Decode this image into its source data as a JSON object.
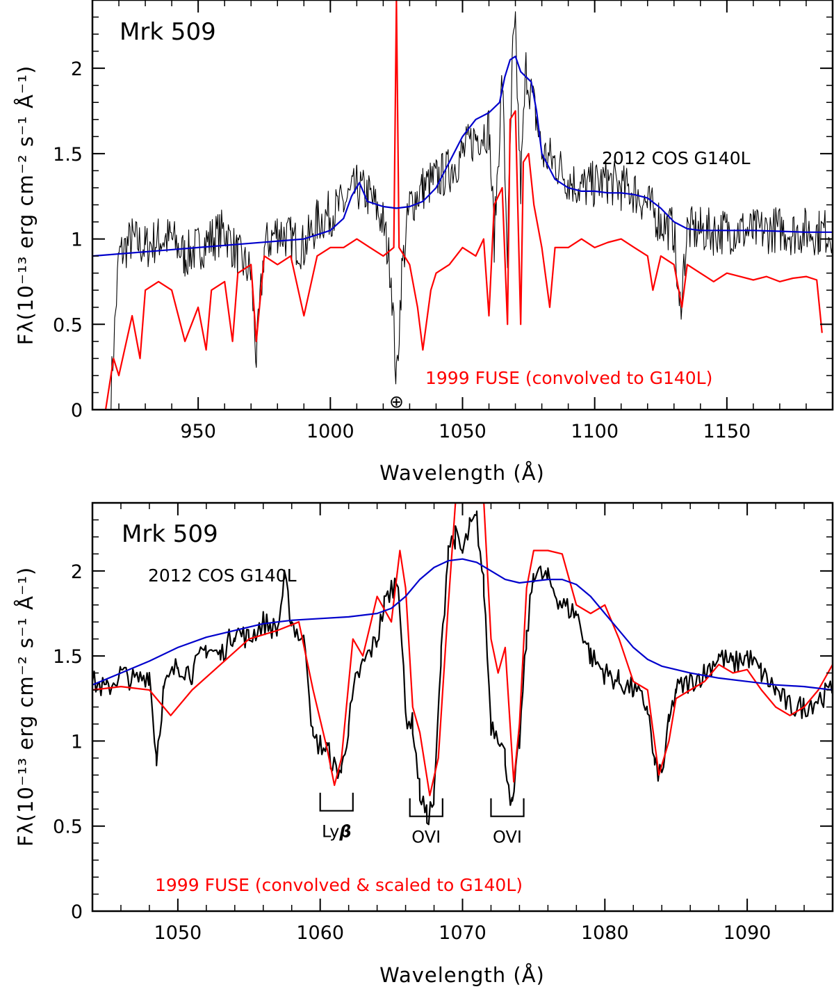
{
  "chart_data": [
    {
      "type": "line",
      "title": "Mrk 509",
      "xlabel": "Wavelength (Å)",
      "ylabel": "Fλ(10⁻¹³ erg cm⁻² s⁻¹ Å⁻¹)",
      "xlim": [
        910,
        1190
      ],
      "ylim": [
        0,
        2.4
      ],
      "xticks": [
        "950",
        "1000",
        "1050",
        "1100",
        "1150"
      ],
      "yticks": [
        "0",
        "0.5",
        "1",
        "1.5",
        "2"
      ],
      "grid": false,
      "annotations": [
        {
          "text": "2012 COS G140L",
          "color": "#000000"
        },
        {
          "text": "1999 FUSE (convolved to G140L)",
          "color": "#ff0000"
        },
        {
          "text": "⊕",
          "color": "#000000",
          "x": 1025
        }
      ],
      "series": [
        {
          "name": "2012 COS G140L",
          "color": "#000000",
          "x": [
            917,
            920,
            925,
            930,
            935,
            940,
            945,
            950,
            955,
            960,
            965,
            970,
            972,
            975,
            980,
            985,
            990,
            995,
            1000,
            1005,
            1010,
            1015,
            1020,
            1023,
            1025,
            1027,
            1030,
            1035,
            1040,
            1045,
            1050,
            1055,
            1060,
            1062,
            1065,
            1067,
            1069,
            1070,
            1072,
            1074,
            1076,
            1078,
            1080,
            1085,
            1090,
            1095,
            1100,
            1105,
            1110,
            1115,
            1120,
            1125,
            1130,
            1132,
            1135,
            1140,
            1145,
            1150,
            1155,
            1160,
            1165,
            1170,
            1175,
            1180,
            1185,
            1190
          ],
          "y": [
            0.1,
            0.9,
            1.0,
            0.95,
            1.0,
            1.0,
            0.9,
            0.95,
            1.0,
            1.05,
            0.9,
            0.8,
            0.3,
            0.95,
            1.05,
            1.0,
            0.95,
            1.1,
            1.15,
            1.2,
            1.3,
            1.25,
            1.1,
            0.8,
            0.15,
            0.8,
            1.2,
            1.3,
            1.35,
            1.4,
            1.5,
            1.6,
            1.65,
            1.0,
            1.95,
            0.9,
            2.1,
            2.2,
            1.3,
            2.0,
            1.85,
            1.7,
            1.5,
            1.45,
            1.35,
            1.3,
            1.32,
            1.34,
            1.3,
            1.28,
            1.2,
            1.1,
            1.05,
            0.55,
            1.05,
            1.05,
            1.04,
            1.05,
            1.05,
            1.04,
            1.05,
            1.06,
            1.04,
            1.05,
            1.04,
            1.05
          ]
        },
        {
          "name": "1999 FUSE (convolved to G140L)",
          "color": "#ff0000",
          "x": [
            915,
            918,
            920,
            925,
            928,
            930,
            935,
            940,
            945,
            950,
            953,
            955,
            960,
            963,
            965,
            970,
            972,
            975,
            980,
            985,
            990,
            995,
            1000,
            1005,
            1010,
            1015,
            1020,
            1024,
            1025,
            1026,
            1028,
            1030,
            1033,
            1035,
            1038,
            1040,
            1045,
            1050,
            1055,
            1058,
            1060,
            1062,
            1065,
            1067,
            1068,
            1070,
            1072,
            1073,
            1075,
            1077,
            1080,
            1083,
            1085,
            1090,
            1095,
            1100,
            1105,
            1110,
            1115,
            1120,
            1122,
            1125,
            1130,
            1133,
            1135,
            1140,
            1145,
            1150,
            1155,
            1160,
            1165,
            1170,
            1175,
            1180,
            1184,
            1186
          ],
          "y": [
            0.0,
            0.3,
            0.2,
            0.55,
            0.3,
            0.7,
            0.75,
            0.7,
            0.4,
            0.6,
            0.35,
            0.7,
            0.75,
            0.4,
            0.8,
            0.85,
            0.4,
            0.9,
            0.85,
            0.9,
            0.55,
            0.9,
            0.95,
            0.95,
            1.0,
            0.95,
            0.9,
            0.95,
            2.4,
            0.95,
            0.9,
            0.85,
            0.6,
            0.35,
            0.7,
            0.8,
            0.85,
            0.95,
            0.9,
            1.0,
            0.55,
            1.2,
            1.3,
            0.5,
            1.7,
            1.75,
            0.5,
            1.45,
            1.5,
            1.2,
            0.95,
            0.6,
            0.95,
            0.95,
            1.0,
            0.95,
            0.98,
            1.0,
            0.95,
            0.9,
            0.7,
            0.9,
            0.85,
            0.6,
            0.85,
            0.8,
            0.75,
            0.8,
            0.78,
            0.76,
            0.78,
            0.75,
            0.77,
            0.78,
            0.76,
            0.45
          ]
        },
        {
          "name": "",
          "color": "#0000cc",
          "x": [
            910,
            950,
            990,
            1000,
            1005,
            1008,
            1011,
            1014,
            1020,
            1025,
            1030,
            1035,
            1040,
            1045,
            1050,
            1055,
            1060,
            1064,
            1066,
            1068,
            1070,
            1072,
            1074,
            1076,
            1078,
            1080,
            1085,
            1090,
            1095,
            1100,
            1105,
            1110,
            1115,
            1120,
            1125,
            1130,
            1135,
            1140,
            1150,
            1160,
            1170,
            1180,
            1190
          ],
          "y": [
            0.9,
            0.95,
            1.0,
            1.05,
            1.12,
            1.25,
            1.33,
            1.22,
            1.19,
            1.18,
            1.19,
            1.22,
            1.3,
            1.45,
            1.6,
            1.7,
            1.74,
            1.8,
            1.95,
            2.05,
            2.07,
            1.98,
            1.95,
            1.92,
            1.75,
            1.5,
            1.35,
            1.3,
            1.28,
            1.28,
            1.27,
            1.27,
            1.26,
            1.24,
            1.18,
            1.1,
            1.06,
            1.05,
            1.05,
            1.05,
            1.045,
            1.04,
            1.04
          ]
        }
      ]
    },
    {
      "type": "line",
      "title": "Mrk 509",
      "xlabel": "Wavelength (Å)",
      "ylabel": "Fλ(10⁻¹³ erg cm⁻² s⁻¹ Å⁻¹)",
      "xlim": [
        1044,
        1096
      ],
      "ylim": [
        0,
        2.4
      ],
      "xticks": [
        "1050",
        "1060",
        "1070",
        "1080",
        "1090"
      ],
      "yticks": [
        "0",
        "0.5",
        "1",
        "1.5",
        "2"
      ],
      "grid": false,
      "annotations": [
        {
          "text": "2012 COS G140L",
          "color": "#000000"
        },
        {
          "text": "1999 FUSE (convolved & scaled to G140L)",
          "color": "#ff0000"
        }
      ],
      "line_ids": [
        {
          "label": "Ly",
          "label_bold": "β",
          "x1": 1060.0,
          "x2": 1062.3
        },
        {
          "label": "OVI",
          "label_bold": "",
          "x1": 1066.3,
          "x2": 1068.6
        },
        {
          "label": "OVI",
          "label_bold": "",
          "x1": 1072.0,
          "x2": 1074.3
        }
      ],
      "series": [
        {
          "name": "2012 COS G140L",
          "color": "#000000",
          "x": [
            1044,
            1045,
            1046,
            1047,
            1048,
            1048.5,
            1049,
            1050,
            1051,
            1052,
            1053,
            1054,
            1055,
            1056,
            1057,
            1057.5,
            1058,
            1059,
            1059.5,
            1060,
            1060.5,
            1061,
            1061.5,
            1062,
            1062.5,
            1063,
            1064,
            1064.5,
            1065,
            1065.5,
            1066,
            1066.5,
            1067,
            1067.5,
            1068,
            1068.5,
            1069,
            1069.5,
            1070,
            1070.5,
            1071,
            1071.5,
            1072,
            1072.5,
            1073,
            1073.5,
            1074,
            1074.5,
            1075,
            1076,
            1077,
            1078,
            1079,
            1080,
            1081,
            1082,
            1083,
            1083.5,
            1084,
            1084.5,
            1085,
            1086,
            1087,
            1088,
            1089,
            1090,
            1091,
            1092,
            1093,
            1094,
            1095,
            1096
          ],
          "y": [
            1.35,
            1.3,
            1.4,
            1.35,
            1.4,
            0.9,
            1.3,
            1.45,
            1.4,
            1.55,
            1.5,
            1.65,
            1.6,
            1.7,
            1.65,
            1.95,
            1.7,
            1.55,
            1.0,
            0.98,
            0.95,
            0.85,
            0.82,
            1.1,
            1.35,
            1.45,
            1.6,
            1.8,
            1.9,
            1.95,
            1.15,
            1.1,
            0.7,
            0.55,
            0.65,
            1.5,
            2.15,
            2.2,
            2.1,
            2.25,
            2.3,
            1.9,
            1.1,
            1.05,
            0.9,
            0.6,
            1.0,
            1.6,
            2.0,
            1.95,
            1.8,
            1.75,
            1.5,
            1.4,
            1.35,
            1.3,
            1.2,
            0.85,
            0.8,
            1.1,
            1.3,
            1.35,
            1.4,
            1.5,
            1.45,
            1.5,
            1.4,
            1.3,
            1.2,
            1.2,
            1.25,
            1.3
          ]
        },
        {
          "name": "1999 FUSE (convolved & scaled to G140L)",
          "color": "#ff0000",
          "x": [
            1044,
            1046,
            1048,
            1049.5,
            1051,
            1053,
            1055,
            1057,
            1058.5,
            1059.5,
            1060.5,
            1061,
            1061.5,
            1062.3,
            1063,
            1064,
            1065,
            1065.6,
            1066,
            1066.5,
            1067,
            1067.7,
            1068.3,
            1069,
            1069.5,
            1070,
            1070.5,
            1071,
            1071.5,
            1072,
            1072.5,
            1073,
            1073.6,
            1074,
            1074.5,
            1075,
            1076,
            1077,
            1078,
            1079,
            1080,
            1081,
            1082,
            1083,
            1083.8,
            1084.5,
            1085,
            1086,
            1087,
            1088,
            1089,
            1090,
            1091,
            1092,
            1093,
            1094,
            1095,
            1096
          ],
          "y": [
            1.3,
            1.32,
            1.3,
            1.15,
            1.3,
            1.45,
            1.6,
            1.65,
            1.7,
            1.3,
            0.95,
            0.74,
            0.9,
            1.6,
            1.5,
            1.85,
            1.7,
            2.12,
            1.9,
            1.2,
            1.05,
            0.68,
            0.9,
            1.8,
            2.4,
            2.4,
            2.4,
            2.4,
            2.4,
            1.6,
            1.4,
            1.55,
            0.76,
            1.1,
            1.9,
            2.12,
            2.12,
            2.1,
            1.8,
            1.75,
            1.8,
            1.6,
            1.35,
            1.3,
            0.8,
            1.0,
            1.25,
            1.3,
            1.35,
            1.45,
            1.4,
            1.42,
            1.3,
            1.2,
            1.15,
            1.2,
            1.3,
            1.45
          ]
        },
        {
          "name": "",
          "color": "#0000cc",
          "x": [
            1044,
            1046,
            1048,
            1050,
            1052,
            1054,
            1056,
            1058,
            1060,
            1062,
            1064,
            1065,
            1066,
            1067,
            1068,
            1069,
            1070,
            1071,
            1072,
            1073,
            1074,
            1075,
            1076,
            1077,
            1078,
            1079,
            1080,
            1081,
            1082,
            1083,
            1084,
            1086,
            1088,
            1090,
            1092,
            1094,
            1096
          ],
          "y": [
            1.33,
            1.4,
            1.47,
            1.55,
            1.61,
            1.65,
            1.69,
            1.71,
            1.72,
            1.73,
            1.75,
            1.78,
            1.85,
            1.95,
            2.02,
            2.06,
            2.07,
            2.05,
            2.0,
            1.95,
            1.93,
            1.94,
            1.95,
            1.95,
            1.92,
            1.85,
            1.75,
            1.65,
            1.55,
            1.48,
            1.44,
            1.4,
            1.37,
            1.35,
            1.33,
            1.32,
            1.3
          ]
        }
      ]
    }
  ]
}
